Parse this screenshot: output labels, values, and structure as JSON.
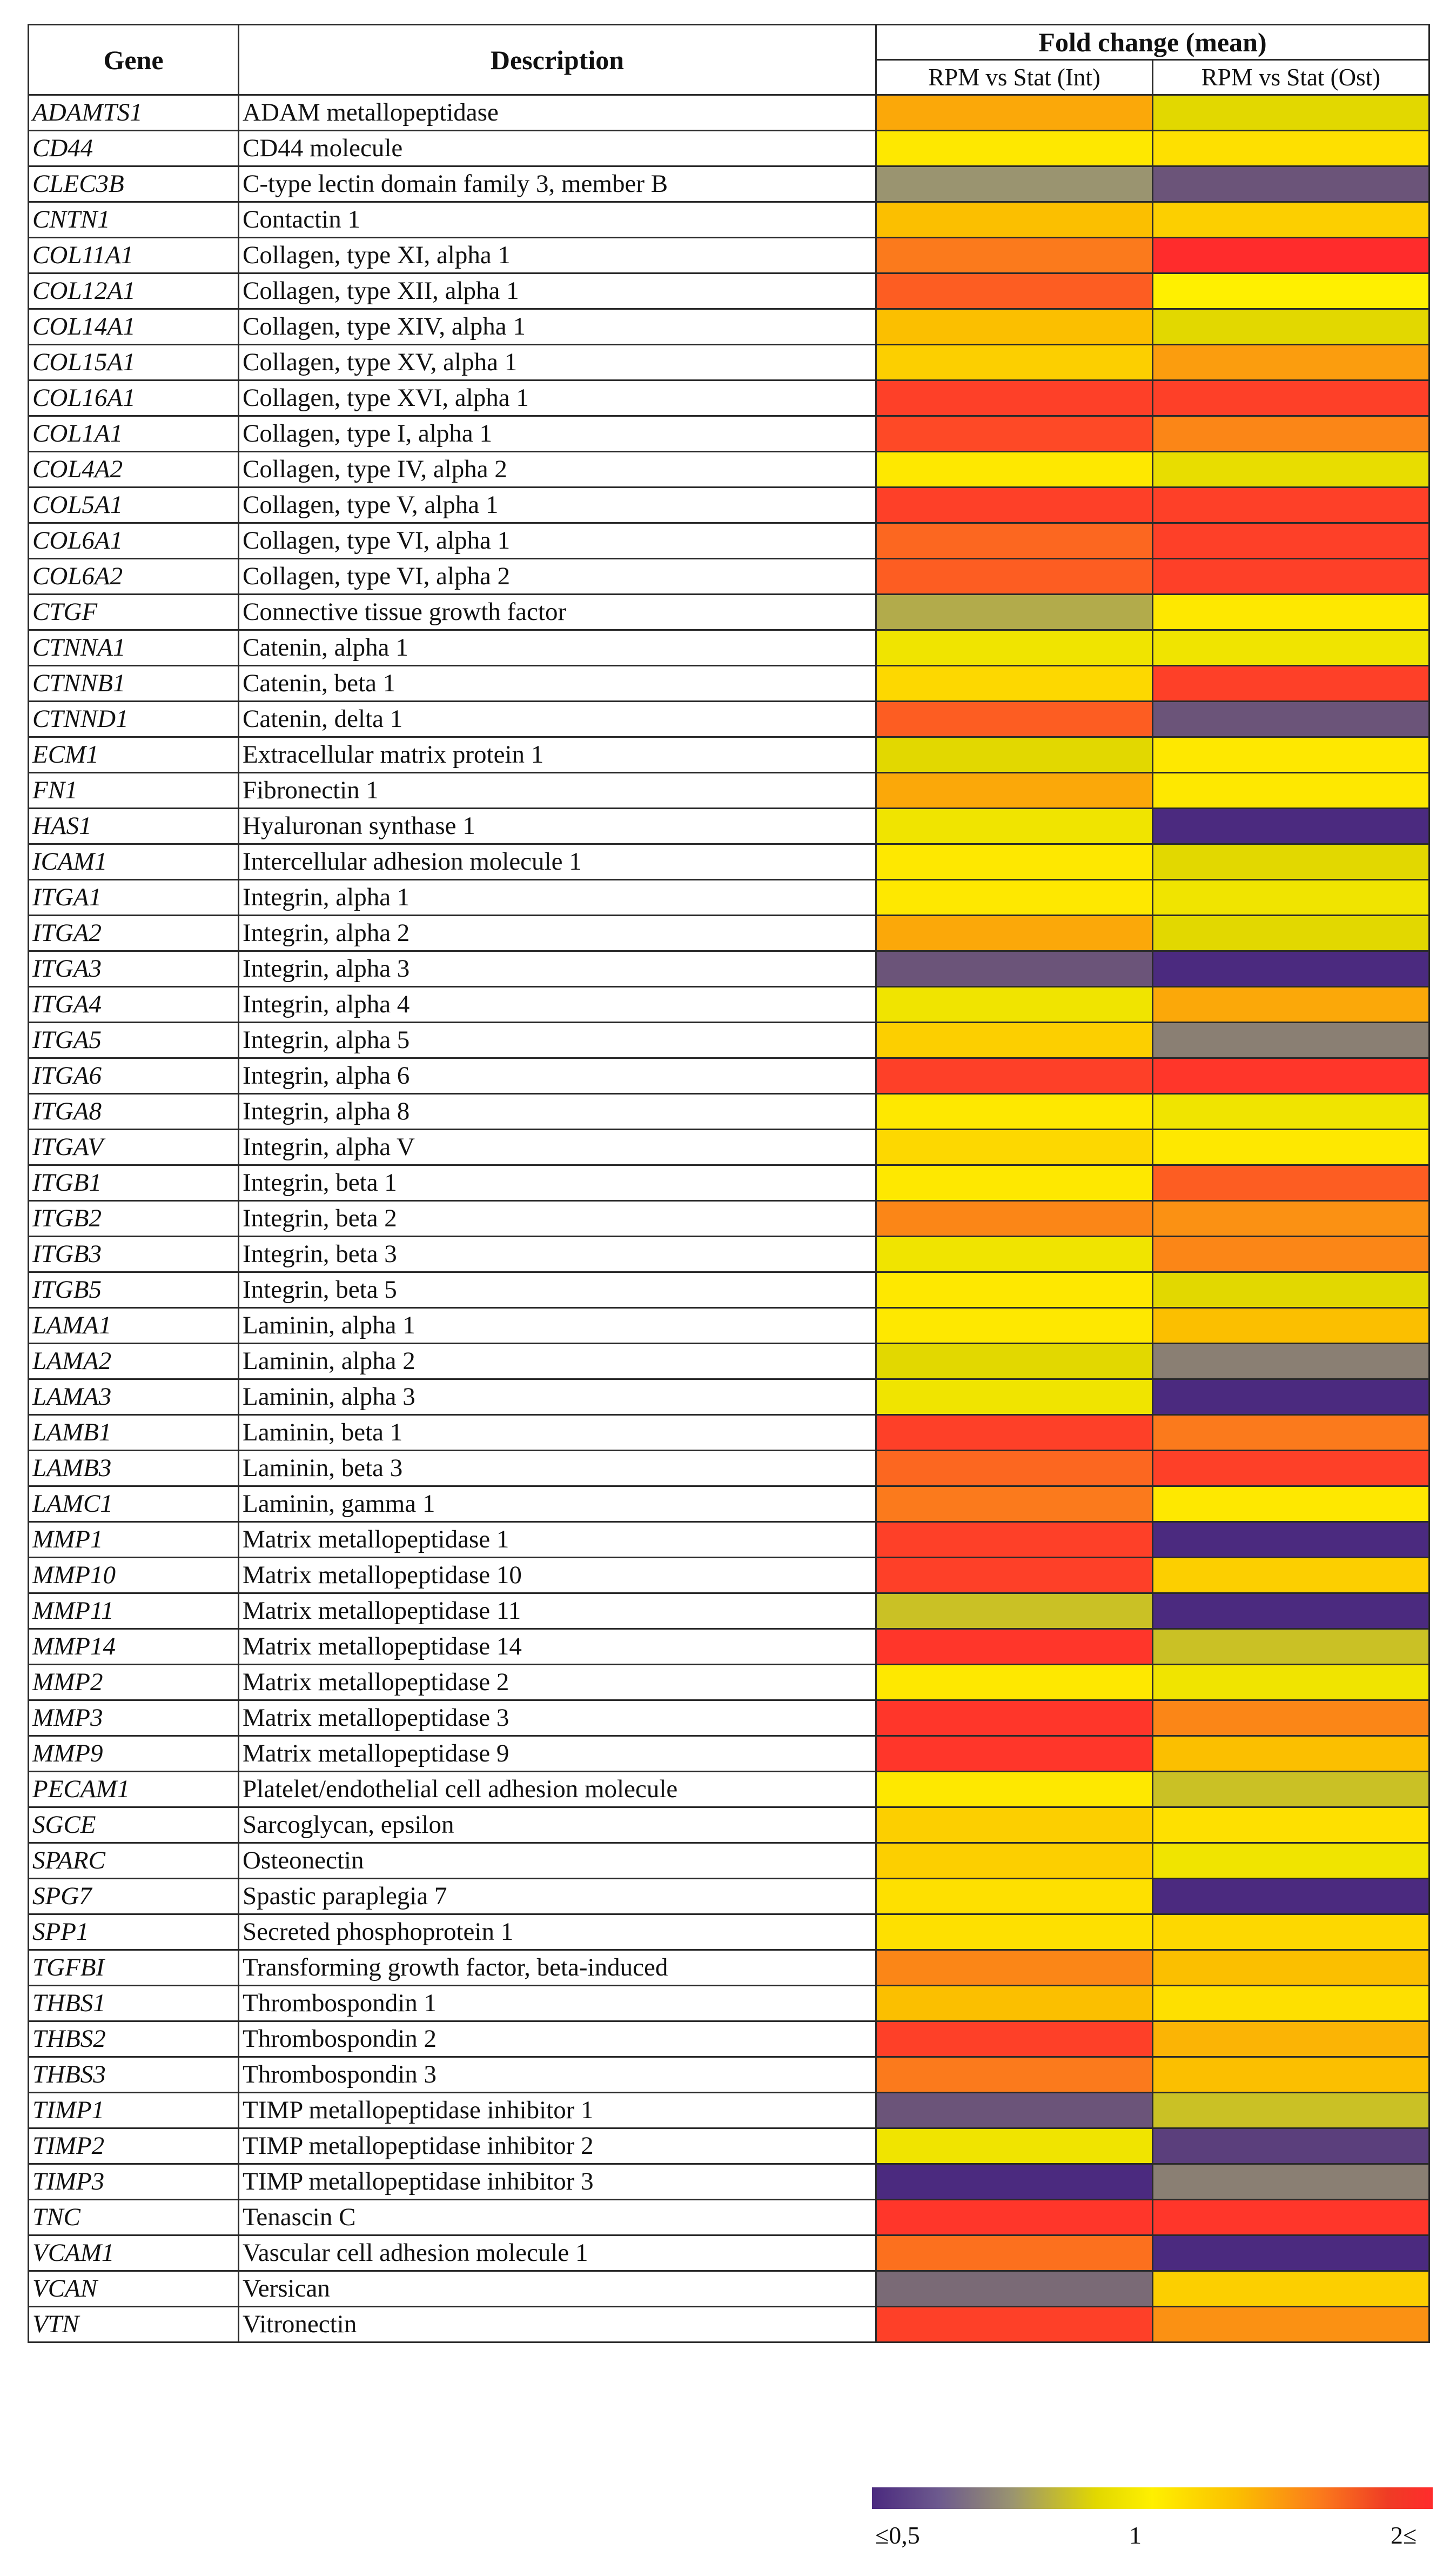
{
  "header": {
    "gene": "Gene",
    "description": "Description",
    "fold_change": "Fold change (mean)",
    "col_int": "RPM vs Stat (Int)",
    "col_ost": "RPM vs Stat (Ost)"
  },
  "legend": {
    "low": "≤0,5",
    "mid": "1",
    "high": "2≤"
  },
  "colors": {
    "low": "#4b2a7f",
    "mid": "#fff000",
    "high": "#ff2c2c"
  },
  "chart_data": {
    "type": "heatmap",
    "title": "Fold change (mean)",
    "columns": [
      "RPM vs Stat (Int)",
      "RPM vs Stat (Ost)"
    ],
    "scale": {
      "min": 0.5,
      "mid": 1,
      "max": 2,
      "min_label": "≤0,5",
      "mid_label": "1",
      "max_label": "2≤"
    },
    "rows": [
      {
        "gene": "ADAMTS1",
        "description": "ADAM metallopeptidase",
        "int": 1.4,
        "ost": 0.9
      },
      {
        "gene": "CD44",
        "description": "CD44 molecule",
        "int": 1.05,
        "ost": 1.1
      },
      {
        "gene": "CLEC3B",
        "description": "C-type lectin domain family 3, member B",
        "int": 0.75,
        "ost": 0.6
      },
      {
        "gene": "CNTN1",
        "description": "Contactin 1",
        "int": 1.3,
        "ost": 1.2
      },
      {
        "gene": "COL11A1",
        "description": "Collagen, type XI, alpha 1",
        "int": 1.6,
        "ost": 2.0
      },
      {
        "gene": "COL12A1",
        "description": "Collagen, type XII, alpha 1",
        "int": 1.75,
        "ost": 1.0
      },
      {
        "gene": "COL14A1",
        "description": "Collagen, type XIV, alpha 1",
        "int": 1.3,
        "ost": 0.9
      },
      {
        "gene": "COL15A1",
        "description": "Collagen, type XV, alpha 1",
        "int": 1.2,
        "ost": 1.45
      },
      {
        "gene": "COL16A1",
        "description": "Collagen, type XVI, alpha 1",
        "int": 1.9,
        "ost": 1.9
      },
      {
        "gene": "COL1A1",
        "description": "Collagen, type I, alpha 1",
        "int": 1.85,
        "ost": 1.55
      },
      {
        "gene": "COL4A2",
        "description": "Collagen, type IV, alpha 2",
        "int": 1.05,
        "ost": 0.92
      },
      {
        "gene": "COL5A1",
        "description": "Collagen, type V, alpha 1",
        "int": 1.9,
        "ost": 1.9
      },
      {
        "gene": "COL6A1",
        "description": "Collagen, type VI, alpha 1",
        "int": 1.7,
        "ost": 1.9
      },
      {
        "gene": "COL6A2",
        "description": "Collagen, type VI, alpha 2",
        "int": 1.75,
        "ost": 1.9
      },
      {
        "gene": "CTGF",
        "description": "Connective tissue growth factor",
        "int": 0.8,
        "ost": 1.05
      },
      {
        "gene": "CTNNA1",
        "description": "Catenin, alpha 1",
        "int": 0.95,
        "ost": 0.95
      },
      {
        "gene": "CTNNB1",
        "description": "Catenin, beta 1",
        "int": 1.15,
        "ost": 1.9
      },
      {
        "gene": "CTNND1",
        "description": "Catenin, delta 1",
        "int": 1.75,
        "ost": 0.6
      },
      {
        "gene": "ECM1",
        "description": "Extracellular matrix protein 1",
        "int": 0.9,
        "ost": 1.05
      },
      {
        "gene": "FN1",
        "description": "Fibronectin 1",
        "int": 1.4,
        "ost": 1.05
      },
      {
        "gene": "HAS1",
        "description": "Hyaluronan synthase 1",
        "int": 0.95,
        "ost": 0.5
      },
      {
        "gene": "ICAM1",
        "description": "Intercellular adhesion molecule 1",
        "int": 1.05,
        "ost": 0.9
      },
      {
        "gene": "ITGA1",
        "description": "Integrin, alpha 1",
        "int": 1.05,
        "ost": 0.95
      },
      {
        "gene": "ITGA2",
        "description": "Integrin, alpha 2",
        "int": 1.4,
        "ost": 0.9
      },
      {
        "gene": "ITGA3",
        "description": "Integrin, alpha 3",
        "int": 0.6,
        "ost": 0.5
      },
      {
        "gene": "ITGA4",
        "description": "Integrin, alpha 4",
        "int": 0.95,
        "ost": 1.4
      },
      {
        "gene": "ITGA5",
        "description": "Integrin, alpha 5",
        "int": 1.2,
        "ost": 0.7
      },
      {
        "gene": "ITGA6",
        "description": "Integrin, alpha 6",
        "int": 1.9,
        "ost": 1.95
      },
      {
        "gene": "ITGA8",
        "description": "Integrin, alpha 8",
        "int": 1.05,
        "ost": 0.95
      },
      {
        "gene": "ITGAV",
        "description": "Integrin, alpha V",
        "int": 1.15,
        "ost": 1.05
      },
      {
        "gene": "ITGB1",
        "description": "Integrin, beta 1",
        "int": 1.05,
        "ost": 1.75
      },
      {
        "gene": "ITGB2",
        "description": "Integrin, beta 2",
        "int": 1.55,
        "ost": 1.5
      },
      {
        "gene": "ITGB3",
        "description": "Integrin, beta 3",
        "int": 0.95,
        "ost": 1.55
      },
      {
        "gene": "ITGB5",
        "description": "Integrin, beta 5",
        "int": 1.05,
        "ost": 0.9
      },
      {
        "gene": "LAMA1",
        "description": "Laminin, alpha 1",
        "int": 1.05,
        "ost": 1.3
      },
      {
        "gene": "LAMA2",
        "description": "Laminin, alpha 2",
        "int": 0.9,
        "ost": 0.7
      },
      {
        "gene": "LAMA3",
        "description": "Laminin, alpha 3",
        "int": 0.95,
        "ost": 0.5
      },
      {
        "gene": "LAMB1",
        "description": "Laminin, beta 1",
        "int": 1.9,
        "ost": 1.6
      },
      {
        "gene": "LAMB3",
        "description": "Laminin, beta 3",
        "int": 1.7,
        "ost": 1.9
      },
      {
        "gene": "LAMC1",
        "description": "Laminin, gamma 1",
        "int": 1.6,
        "ost": 1.05
      },
      {
        "gene": "MMP1",
        "description": "Matrix metallopeptidase 1",
        "int": 1.9,
        "ost": 0.5
      },
      {
        "gene": "MMP10",
        "description": "Matrix metallopeptidase 10",
        "int": 1.9,
        "ost": 1.2
      },
      {
        "gene": "MMP11",
        "description": "Matrix metallopeptidase 11",
        "int": 0.85,
        "ost": 0.5
      },
      {
        "gene": "MMP14",
        "description": "Matrix metallopeptidase 14",
        "int": 1.95,
        "ost": 0.85
      },
      {
        "gene": "MMP2",
        "description": "Matrix metallopeptidase 2",
        "int": 1.05,
        "ost": 0.95
      },
      {
        "gene": "MMP3",
        "description": "Matrix metallopeptidase 3",
        "int": 1.95,
        "ost": 1.55
      },
      {
        "gene": "MMP9",
        "description": "Matrix metallopeptidase 9",
        "int": 1.95,
        "ost": 1.3
      },
      {
        "gene": "PECAM1",
        "description": "Platelet/endothelial cell adhesion molecule",
        "int": 1.05,
        "ost": 0.85
      },
      {
        "gene": "SGCE",
        "description": "Sarcoglycan, epsilon",
        "int": 1.2,
        "ost": 1.1
      },
      {
        "gene": "SPARC",
        "description": "Osteonectin",
        "int": 1.2,
        "ost": 0.95
      },
      {
        "gene": "SPG7",
        "description": "Spastic paraplegia 7",
        "int": 1.1,
        "ost": 0.5
      },
      {
        "gene": "SPP1",
        "description": "Secreted phosphoprotein 1",
        "int": 1.1,
        "ost": 1.15
      },
      {
        "gene": "TGFBI",
        "description": "Transforming growth factor, beta-induced",
        "int": 1.55,
        "ost": 1.3
      },
      {
        "gene": "THBS1",
        "description": "Thrombospondin 1",
        "int": 1.3,
        "ost": 1.1
      },
      {
        "gene": "THBS2",
        "description": "Thrombospondin 2",
        "int": 1.9,
        "ost": 1.35
      },
      {
        "gene": "THBS3",
        "description": "Thrombospondin 3",
        "int": 1.6,
        "ost": 1.3
      },
      {
        "gene": "TIMP1",
        "description": "TIMP metallopeptidase inhibitor 1",
        "int": 0.6,
        "ost": 0.85
      },
      {
        "gene": "TIMP2",
        "description": "TIMP metallopeptidase inhibitor 2",
        "int": 0.95,
        "ost": 0.55
      },
      {
        "gene": "TIMP3",
        "description": "TIMP metallopeptidase inhibitor 3",
        "int": 0.5,
        "ost": 0.7
      },
      {
        "gene": "TNC",
        "description": "Tenascin C",
        "int": 1.95,
        "ost": 1.95
      },
      {
        "gene": "VCAM1",
        "description": "Vascular cell adhesion molecule 1",
        "int": 1.65,
        "ost": 0.5
      },
      {
        "gene": "VCAN",
        "description": "Versican",
        "int": 0.65,
        "ost": 1.2
      },
      {
        "gene": "VTN",
        "description": "Vitronectin",
        "int": 1.9,
        "ost": 1.5
      }
    ]
  }
}
